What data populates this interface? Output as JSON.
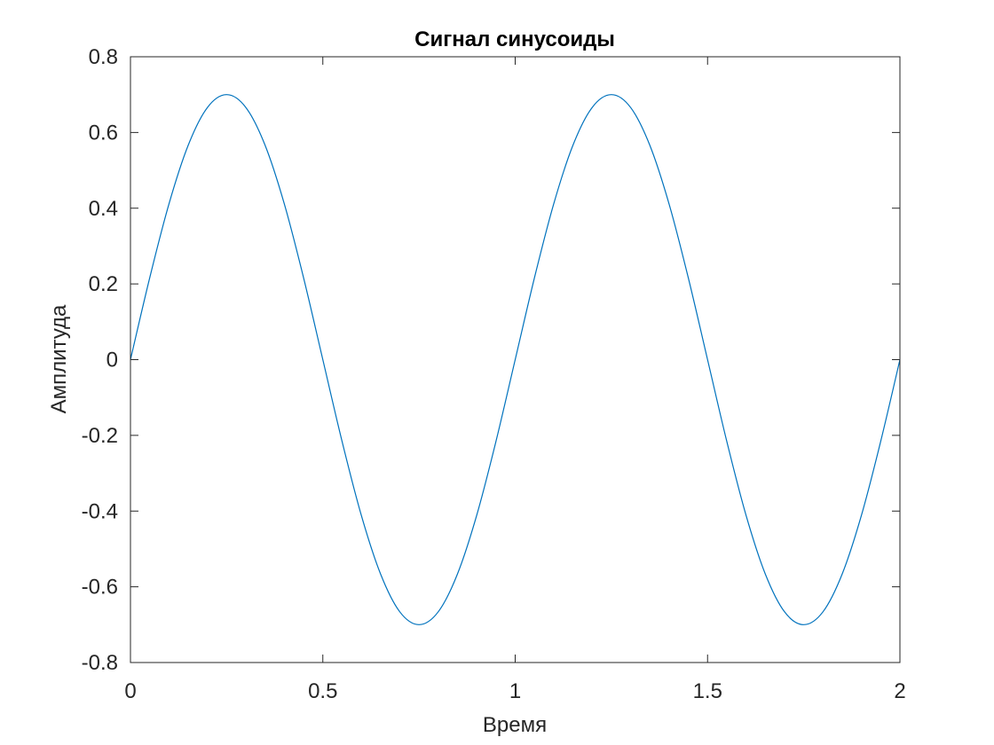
{
  "chart_data": {
    "type": "line",
    "title": "Сигнал синусоиды",
    "xlabel": "Время",
    "ylabel": "Амплитуда",
    "xlim": [
      0,
      2
    ],
    "ylim": [
      -0.8,
      0.8
    ],
    "xticks": [
      0,
      0.5,
      1,
      1.5,
      2
    ],
    "xtick_labels": [
      "0",
      "0.5",
      "1",
      "1.5",
      "2"
    ],
    "yticks": [
      -0.8,
      -0.6,
      -0.4,
      -0.2,
      0,
      0.2,
      0.4,
      0.6,
      0.8
    ],
    "ytick_labels": [
      "-0.8",
      "-0.6",
      "-0.4",
      "-0.2",
      "0",
      "0.2",
      "0.4",
      "0.6",
      "0.8"
    ],
    "grid": false,
    "series": [
      {
        "color": "#0072BD",
        "x": [
          0,
          0.05,
          0.1,
          0.15,
          0.2,
          0.25,
          0.3,
          0.35,
          0.4,
          0.45,
          0.5,
          0.55,
          0.6,
          0.65,
          0.7,
          0.75,
          0.8,
          0.85,
          0.9,
          0.95,
          1,
          1.05,
          1.1,
          1.15,
          1.2,
          1.25,
          1.3,
          1.35,
          1.4,
          1.45,
          1.5,
          1.55,
          1.6,
          1.65,
          1.7,
          1.75,
          1.8,
          1.85,
          1.9,
          1.95,
          2
        ],
        "y": [
          0,
          0.216,
          0.411,
          0.566,
          0.666,
          0.7,
          0.666,
          0.566,
          0.411,
          0.216,
          0,
          -0.216,
          -0.411,
          -0.566,
          -0.666,
          -0.7,
          -0.666,
          -0.566,
          -0.411,
          -0.216,
          0,
          0.216,
          0.411,
          0.566,
          0.666,
          0.7,
          0.666,
          0.566,
          0.411,
          0.216,
          0,
          -0.216,
          -0.411,
          -0.566,
          -0.666,
          -0.7,
          -0.666,
          -0.566,
          -0.411,
          -0.216,
          0
        ]
      }
    ]
  }
}
